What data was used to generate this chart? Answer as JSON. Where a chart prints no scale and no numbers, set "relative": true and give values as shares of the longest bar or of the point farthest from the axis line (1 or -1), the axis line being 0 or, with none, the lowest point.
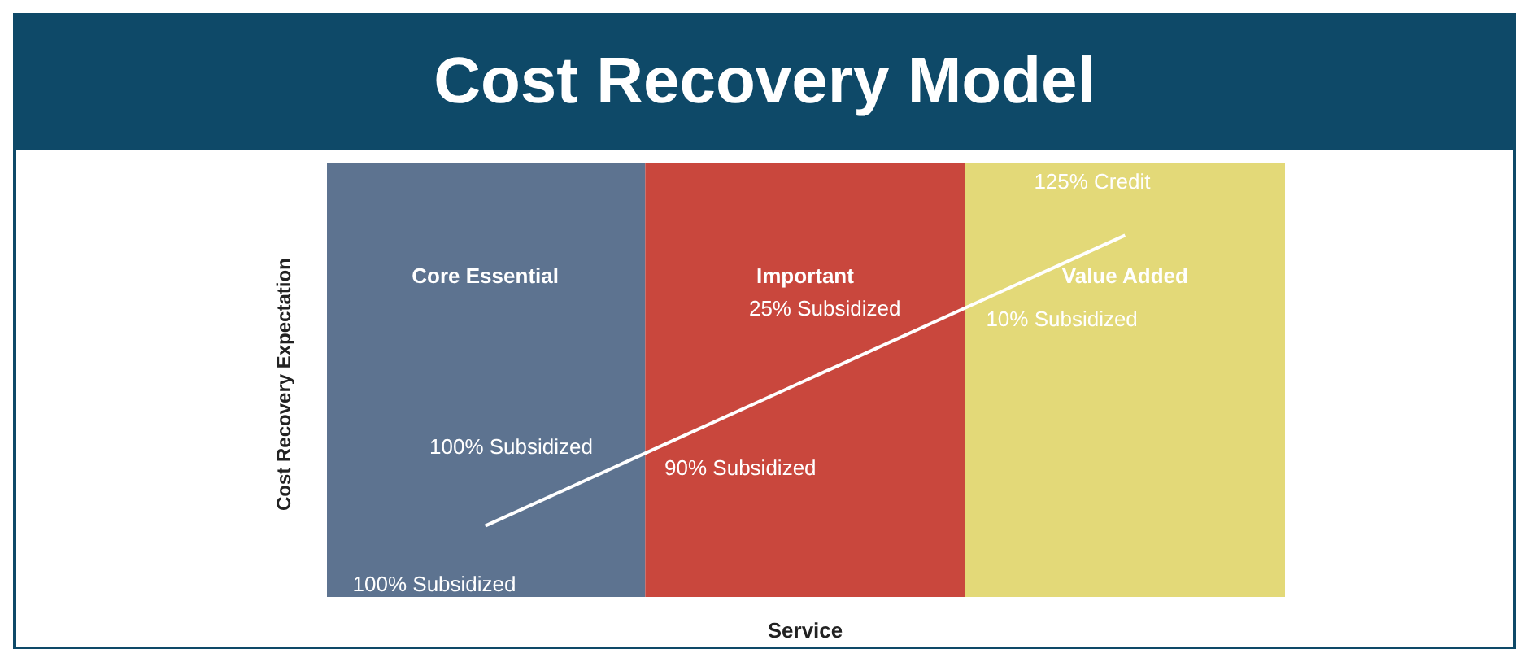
{
  "chart_data": {
    "type": "line",
    "title": "Cost Recovery Model",
    "xlabel": "Service",
    "ylabel": "Cost Recovery Expectation",
    "relative": true,
    "marker": "none",
    "line_style": "solid",
    "categories": [
      "Core Essential",
      "Important",
      "Value Added"
    ],
    "series": [
      {
        "color": "#ffffff",
        "values": [
          0.2,
          0.6,
          1
        ]
      }
    ],
    "bands": [
      {
        "axis": "x",
        "from": "Core Essential",
        "to": "Core Essential",
        "color": "#5d7390"
      },
      {
        "axis": "x",
        "from": "Important",
        "to": "Important",
        "color": "#c9473d"
      },
      {
        "axis": "x",
        "from": "Value Added",
        "to": "Value Added",
        "color": "#e3d978"
      }
    ],
    "annotations": [
      "25% Subsidized",
      "10% Subsidized",
      "125% Credit",
      "100% Subsidized",
      "90% Subsidized",
      "100% Subsidized"
    ]
  }
}
